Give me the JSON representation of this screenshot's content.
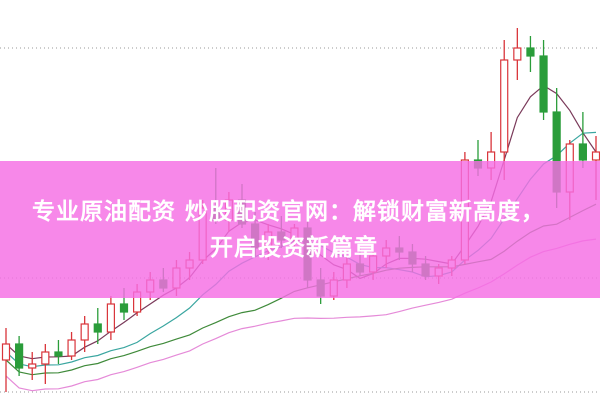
{
  "banner": {
    "line1": "专业原油配资 炒股配资官网：解锁财富新高度，",
    "line2": "开启投资新篇章",
    "color": "#f56ee4"
  },
  "chart_data": {
    "type": "candlestick",
    "title": "",
    "xlabel": "",
    "ylabel": "",
    "ylim": [
      0,
      100
    ],
    "grid": "horizontal dotted",
    "colors": {
      "up": "#d9343a",
      "down": "#2a9d3a",
      "ma5": "#7a3a5a",
      "ma10": "#3aa6a0",
      "ma20": "#3f8a3a",
      "ma30": "#e58ad8"
    },
    "candles": [
      [
        10,
        18,
        2,
        14
      ],
      [
        14,
        16,
        6,
        8
      ],
      [
        8,
        12,
        5,
        9
      ],
      [
        9,
        14,
        4,
        12
      ],
      [
        12,
        15,
        9,
        11
      ],
      [
        11,
        17,
        10,
        15
      ],
      [
        15,
        21,
        12,
        19
      ],
      [
        19,
        23,
        14,
        17
      ],
      [
        17,
        26,
        15,
        24
      ],
      [
        24,
        28,
        20,
        22
      ],
      [
        22,
        29,
        21,
        27
      ],
      [
        27,
        32,
        25,
        30
      ],
      [
        30,
        33,
        27,
        28
      ],
      [
        28,
        35,
        26,
        33
      ],
      [
        33,
        37,
        30,
        35
      ],
      [
        35,
        50,
        34,
        48
      ],
      [
        48,
        58,
        44,
        45
      ],
      [
        45,
        52,
        42,
        50
      ],
      [
        50,
        54,
        43,
        44
      ],
      [
        44,
        47,
        36,
        38
      ],
      [
        38,
        44,
        35,
        42
      ],
      [
        42,
        46,
        38,
        40
      ],
      [
        40,
        44,
        37,
        43
      ],
      [
        43,
        45,
        28,
        30
      ],
      [
        30,
        33,
        24,
        26
      ],
      [
        26,
        32,
        25,
        30
      ],
      [
        30,
        36,
        28,
        34
      ],
      [
        34,
        38,
        31,
        32
      ],
      [
        32,
        37,
        30,
        36
      ],
      [
        36,
        40,
        33,
        38
      ],
      [
        38,
        41,
        35,
        37
      ],
      [
        37,
        39,
        32,
        34
      ],
      [
        34,
        36,
        30,
        31
      ],
      [
        31,
        34,
        29,
        33
      ],
      [
        33,
        36,
        31,
        35
      ],
      [
        35,
        62,
        34,
        60
      ],
      [
        60,
        65,
        56,
        58
      ],
      [
        58,
        67,
        55,
        62
      ],
      [
        62,
        90,
        55,
        85
      ],
      [
        85,
        93,
        80,
        88
      ],
      [
        88,
        91,
        82,
        86
      ],
      [
        86,
        90,
        70,
        72
      ],
      [
        72,
        78,
        48,
        52
      ],
      [
        52,
        65,
        45,
        64
      ],
      [
        64,
        72,
        58,
        60
      ],
      [
        60,
        66,
        50,
        62
      ]
    ],
    "candle_fields": [
      "open",
      "high",
      "low",
      "close"
    ]
  }
}
